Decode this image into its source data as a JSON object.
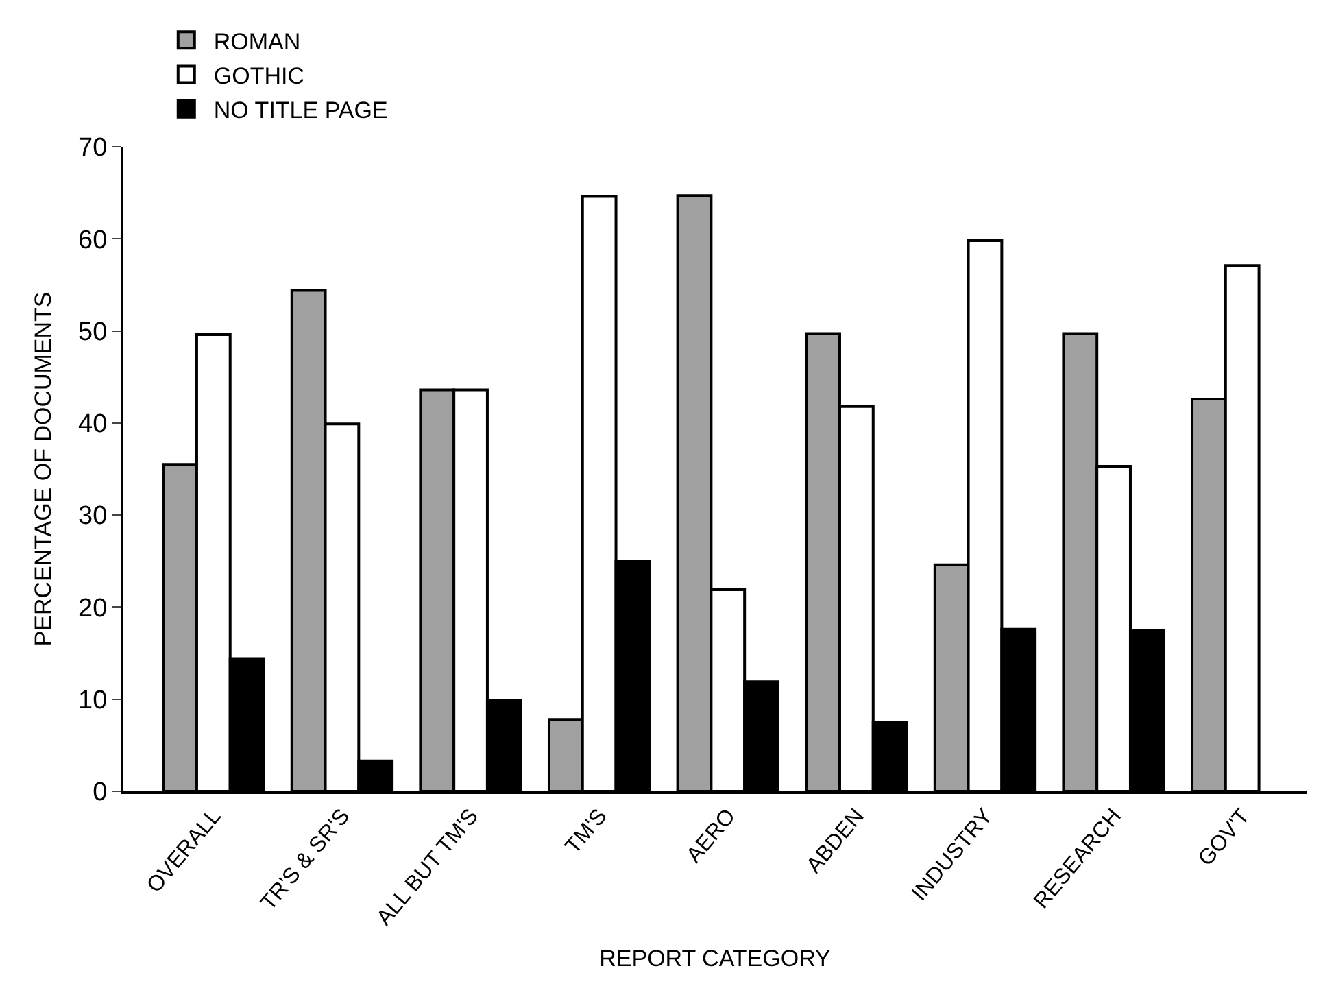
{
  "chart_data": {
    "type": "bar",
    "xlabel": "REPORT CATEGORY",
    "ylabel": "PERCENTAGE OF DOCUMENTS",
    "categories": [
      "OVERALL",
      "TR'S & SR'S",
      "ALL BUT TM'S",
      "TM'S",
      "AERO",
      "ABDEN",
      "INDUSTRY",
      "RESEARCH",
      "GOV'T"
    ],
    "series": [
      {
        "name": "ROMAN",
        "color": "#a0a0a0",
        "values": [
          35.5,
          54.4,
          43.6,
          7.8,
          64.7,
          49.7,
          24.6,
          49.7,
          42.6
        ]
      },
      {
        "name": "GOTHIC",
        "color": "#ffffff",
        "values": [
          49.6,
          39.9,
          43.6,
          64.6,
          21.9,
          41.8,
          59.8,
          35.3,
          57.1
        ]
      },
      {
        "name": "NO TITLE PAGE",
        "color": "#000000",
        "values": [
          14.4,
          3.3,
          9.9,
          25.0,
          11.9,
          7.5,
          17.6,
          17.5,
          null
        ]
      }
    ],
    "ylim": [
      0,
      70
    ],
    "yticks": [
      0,
      10,
      20,
      30,
      40,
      50,
      60,
      70
    ],
    "legend": "top left"
  }
}
